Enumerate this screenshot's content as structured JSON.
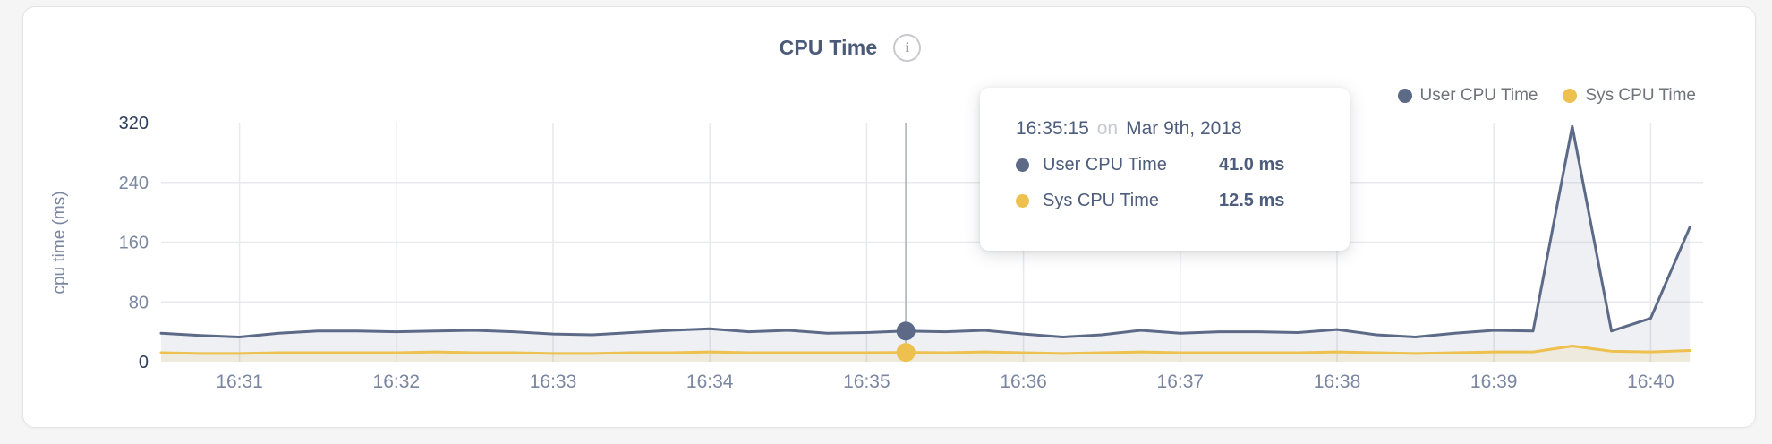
{
  "header": {
    "title": "CPU Time",
    "info_icon": "i"
  },
  "legend": [
    {
      "label": "User CPU Time",
      "color": "#5c6a88"
    },
    {
      "label": "Sys CPU Time",
      "color": "#eec04d"
    }
  ],
  "tooltip": {
    "time": "16:35:15",
    "connector": "on",
    "date": "Mar 9th, 2018",
    "rows": [
      {
        "label": "User CPU Time",
        "value": "41.0 ms",
        "color": "#5c6a88"
      },
      {
        "label": "Sys CPU Time",
        "value": "12.5 ms",
        "color": "#eec04d"
      }
    ]
  },
  "chart_data": {
    "type": "area",
    "title": "CPU Time",
    "xlabel": "",
    "ylabel": "cpu time (ms)",
    "ylim": [
      0,
      320
    ],
    "yticks": [
      0,
      80,
      160,
      240,
      320
    ],
    "xticks": [
      "16:31",
      "16:32",
      "16:33",
      "16:34",
      "16:35",
      "16:36",
      "16:37",
      "16:38",
      "16:39",
      "16:40"
    ],
    "grid": true,
    "legend_position": "top-right",
    "x": [
      "16:30:30",
      "16:30:45",
      "16:31:00",
      "16:31:15",
      "16:31:30",
      "16:31:45",
      "16:32:00",
      "16:32:15",
      "16:32:30",
      "16:32:45",
      "16:33:00",
      "16:33:15",
      "16:33:30",
      "16:33:45",
      "16:34:00",
      "16:34:15",
      "16:34:30",
      "16:34:45",
      "16:35:00",
      "16:35:15",
      "16:35:30",
      "16:35:45",
      "16:36:00",
      "16:36:15",
      "16:36:30",
      "16:36:45",
      "16:37:00",
      "16:37:15",
      "16:37:30",
      "16:37:45",
      "16:38:00",
      "16:38:15",
      "16:38:30",
      "16:38:45",
      "16:39:00",
      "16:39:15",
      "16:39:30",
      "16:39:45",
      "16:40:00",
      "16:40:15"
    ],
    "series": [
      {
        "name": "User CPU Time",
        "color": "#5c6a88",
        "values": [
          38,
          35,
          33,
          38,
          41,
          41,
          40,
          41,
          42,
          40,
          37,
          36,
          39,
          42,
          44,
          40,
          42,
          38,
          39,
          41,
          40,
          42,
          37,
          33,
          36,
          42,
          38,
          40,
          40,
          39,
          43,
          36,
          33,
          38,
          42,
          41,
          315,
          41,
          58,
          180
        ]
      },
      {
        "name": "Sys CPU Time",
        "color": "#eec04d",
        "values": [
          12,
          11,
          11,
          12,
          12,
          12,
          12,
          13,
          12,
          12,
          11,
          11,
          12,
          12,
          13,
          12,
          12,
          12,
          12,
          12.5,
          12,
          13,
          12,
          11,
          12,
          13,
          12,
          12,
          12,
          12,
          13,
          12,
          11,
          12,
          13,
          13,
          21,
          14,
          13,
          15
        ]
      }
    ],
    "hover": {
      "time": "16:35:15",
      "values": [
        41.0,
        12.5
      ]
    }
  },
  "colors": {
    "grid": "#e8e9ec",
    "tick_light": "#7b86a0",
    "tick_dark": "#2c3d5d",
    "hover_line": "#b8bbc1"
  }
}
